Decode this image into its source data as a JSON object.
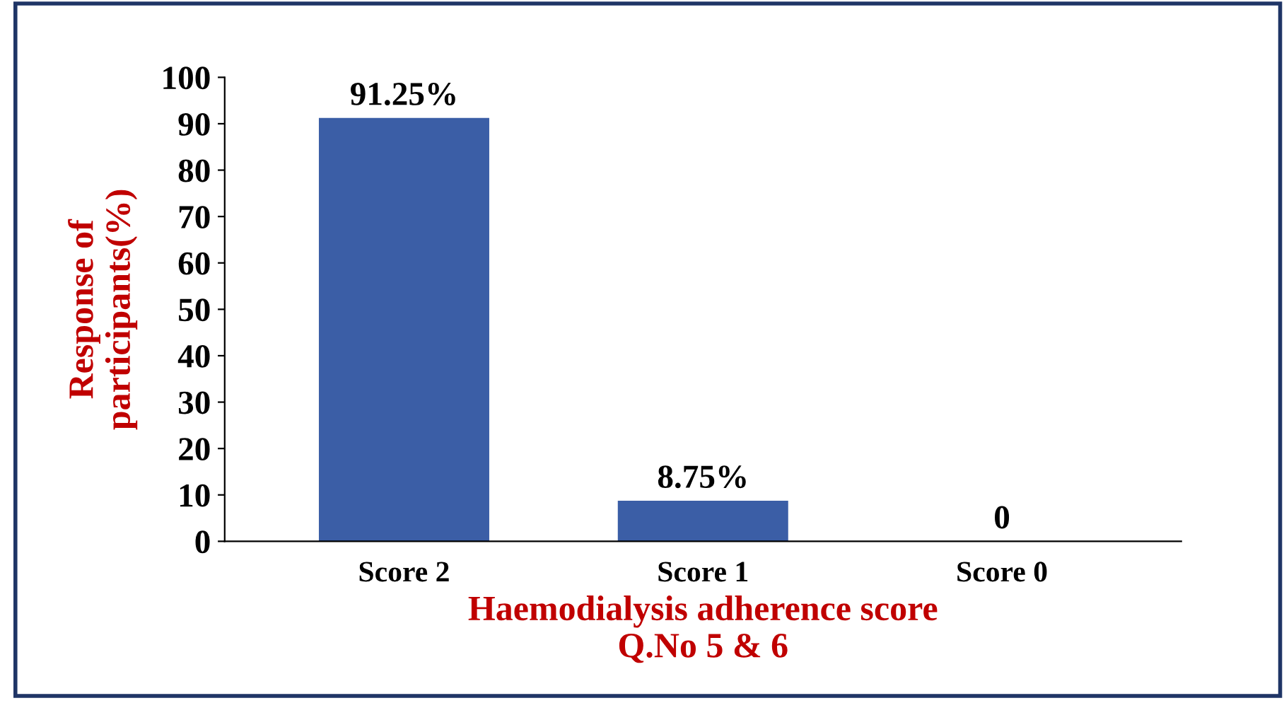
{
  "chart_data": {
    "type": "bar",
    "xlabel": "Haemodialysis adherence score\nQ.No 5 & 6",
    "ylabel": "Response of\nparticipants(%)",
    "categories": [
      "Score 2",
      "Score 1",
      "Score 0"
    ],
    "values": [
      91.25,
      8.75,
      0
    ],
    "color": "#3b5ea6",
    "value_labels": [
      "91.25%",
      "8.75%",
      "0"
    ],
    "ylim": [
      0,
      100
    ],
    "yticks": [
      0,
      10,
      20,
      30,
      40,
      50,
      60,
      70,
      80,
      90,
      100
    ],
    "grid": false,
    "legend": false
  }
}
